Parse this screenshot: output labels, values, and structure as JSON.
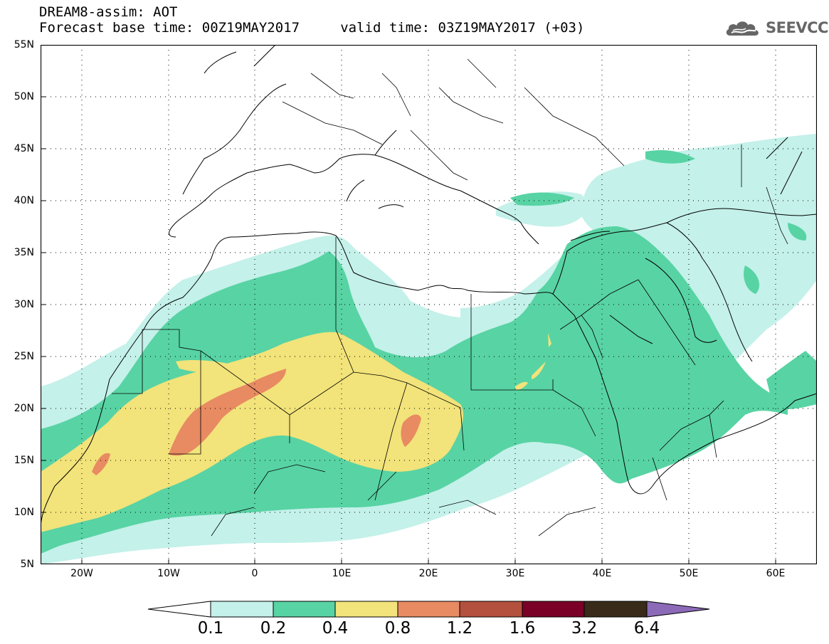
{
  "header": {
    "title_line1": "DREAM8-assim: AOT",
    "title_line2": "Forecast base time: 00Z19MAY2017     valid time: 03Z19MAY2017 (+03)",
    "logo_text": "SEEVCCC"
  },
  "map": {
    "lat_labels": [
      "55N",
      "50N",
      "45N",
      "40N",
      "35N",
      "30N",
      "25N",
      "20N",
      "15N",
      "10N",
      "5N"
    ],
    "lon_labels": [
      "20W",
      "10W",
      "0",
      "10E",
      "20E",
      "30E",
      "40E",
      "50E",
      "60E"
    ],
    "field": "AOT"
  },
  "colorbar": {
    "levels": [
      "0.1",
      "0.2",
      "0.4",
      "0.8",
      "1.2",
      "1.6",
      "3.2",
      "6.4"
    ],
    "colors": [
      "#c4f1ea",
      "#58d3a4",
      "#f2e37a",
      "#e88a62",
      "#b4503e",
      "#7a0027",
      "#3a2a1a",
      "#8c6ab8"
    ]
  }
}
